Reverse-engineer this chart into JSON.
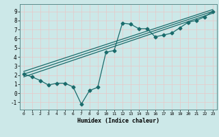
{
  "xlabel": "Humidex (Indice chaleur)",
  "xlim": [
    -0.5,
    23.5
  ],
  "ylim": [
    -1.8,
    9.8
  ],
  "xticks": [
    0,
    1,
    2,
    3,
    4,
    5,
    6,
    7,
    8,
    9,
    10,
    11,
    12,
    13,
    14,
    15,
    16,
    17,
    18,
    19,
    20,
    21,
    22,
    23
  ],
  "yticks": [
    -1,
    0,
    1,
    2,
    3,
    4,
    5,
    6,
    7,
    8,
    9
  ],
  "bg_color": "#cce8e8",
  "grid_color": "#b0d4d4",
  "line_color": "#1a6b6b",
  "curve1_x": [
    0,
    1,
    2,
    3,
    4,
    5,
    6,
    7,
    8,
    9,
    10,
    11,
    12,
    13,
    14,
    15,
    16,
    17,
    18,
    19,
    20,
    21,
    22,
    23
  ],
  "curve1_y": [
    2.1,
    1.8,
    1.4,
    0.9,
    1.1,
    1.1,
    0.7,
    -1.2,
    0.3,
    0.65,
    4.5,
    4.7,
    7.7,
    7.6,
    7.1,
    7.1,
    6.2,
    6.4,
    6.6,
    7.2,
    7.8,
    8.0,
    8.4,
    9.0
  ],
  "line1_x": [
    0,
    23
  ],
  "line1_y": [
    2.1,
    9.0
  ],
  "line2_x": [
    0,
    23
  ],
  "line2_y": [
    1.8,
    8.8
  ],
  "line3_x": [
    0,
    23
  ],
  "line3_y": [
    2.4,
    9.2
  ],
  "marker": "D",
  "markersize": 2.5,
  "linewidth": 0.9
}
